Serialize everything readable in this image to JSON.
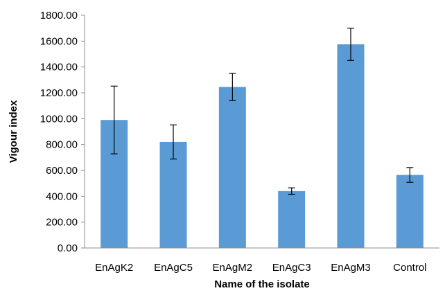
{
  "chart_data": {
    "type": "bar",
    "title": "",
    "xlabel": "Name of the isolate",
    "ylabel": "Vigour index",
    "categories": [
      "EnAgK2",
      "EnAgC5",
      "EnAgM2",
      "EnAgC3",
      "EnAgM3",
      "Control"
    ],
    "series": [
      {
        "values": [
          990,
          820,
          1245,
          440,
          1575,
          565
        ],
        "error": [
          262,
          132,
          105,
          25,
          125,
          57
        ]
      }
    ],
    "ylim": [
      0,
      1800
    ],
    "yticks": [
      0,
      200,
      400,
      600,
      800,
      1000,
      1200,
      1400,
      1600,
      1800
    ],
    "ytick_labels": [
      "0.00",
      "200.00",
      "400.00",
      "600.00",
      "800.00",
      "1000.00",
      "1200.00",
      "1400.00",
      "1600.00",
      "1800.00"
    ],
    "grid": false,
    "legend": "none",
    "bar_color": "#5B9BD5",
    "error_bar_color": "#000000",
    "axis_color": "#8c8c8c"
  }
}
